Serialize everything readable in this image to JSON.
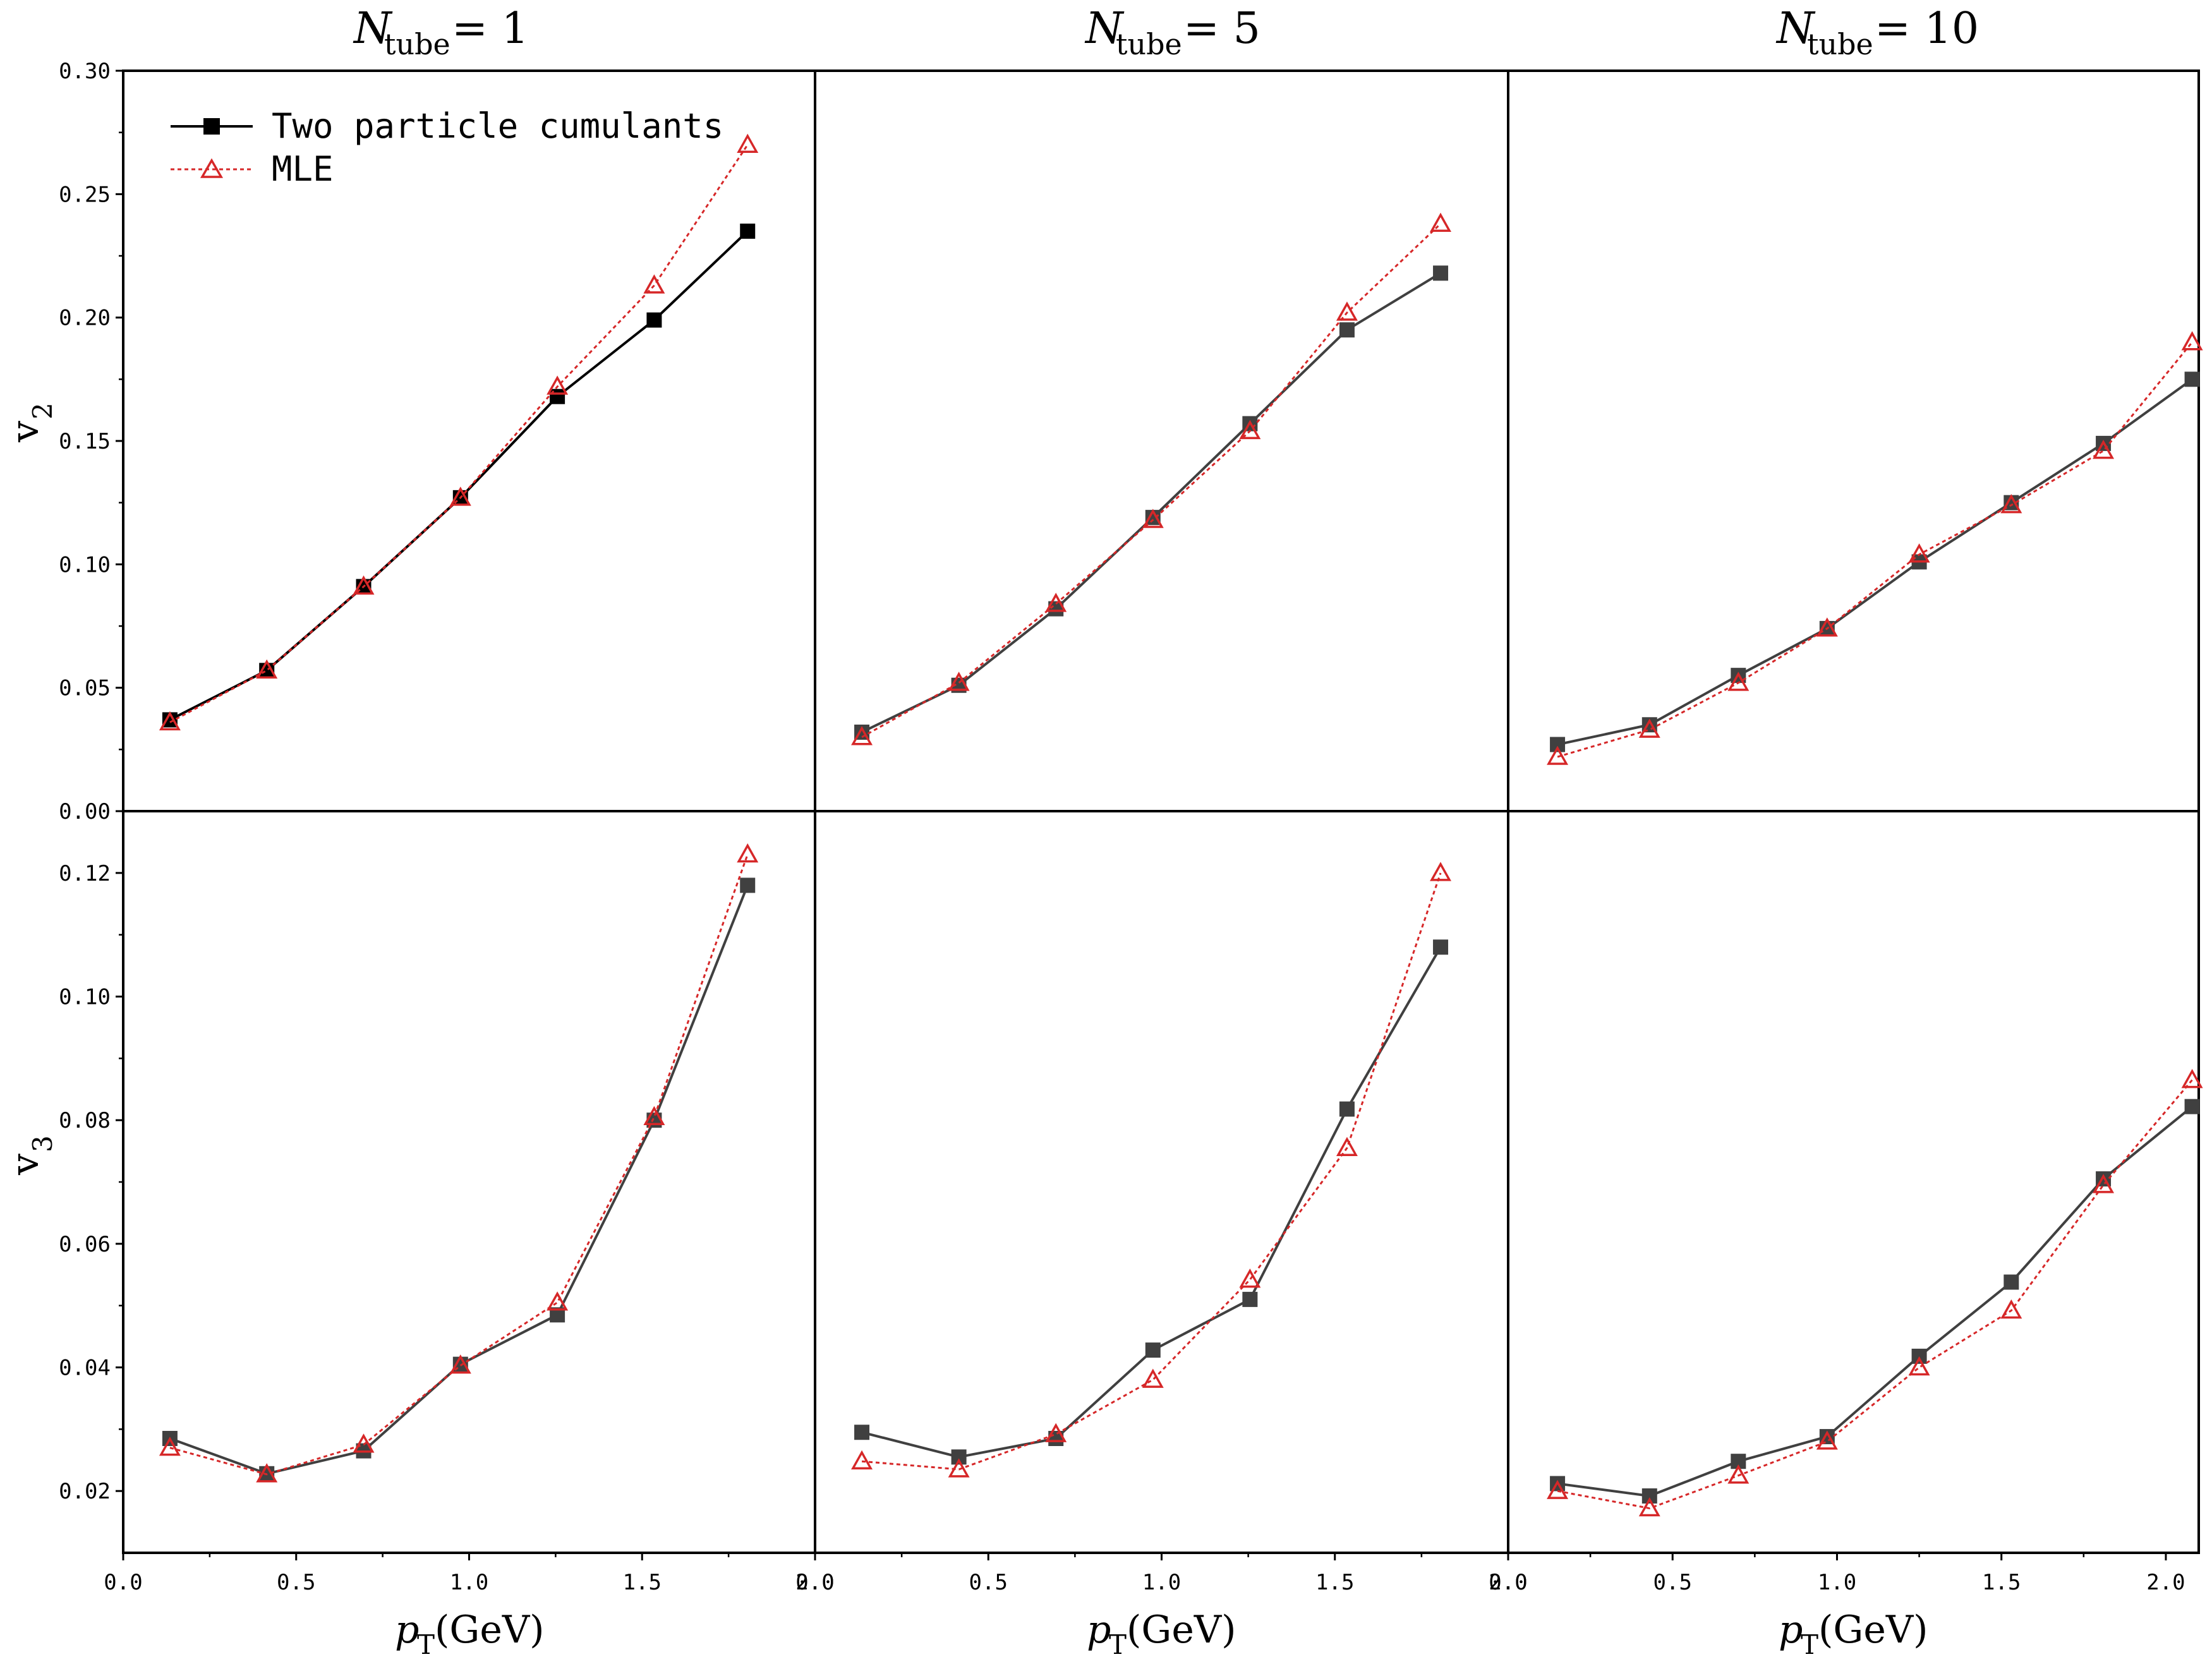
{
  "figure": {
    "x_axis_label": "p",
    "x_axis_label_sub": "T",
    "x_axis_unit": "(GeV)",
    "columns": [
      {
        "title_symbol": "N",
        "title_sub": "tube",
        "title_rest": "= 1"
      },
      {
        "title_symbol": "N",
        "title_sub": "tube",
        "title_rest": "= 5"
      },
      {
        "title_symbol": "N",
        "title_sub": "tube",
        "title_rest": "= 10"
      }
    ],
    "rows": [
      {
        "ylabel": "v",
        "ylabel_sub": "2"
      },
      {
        "ylabel": "v",
        "ylabel_sub": "3"
      }
    ],
    "legend": {
      "position": "top-left",
      "entries": [
        {
          "label": "Two particle cumulants",
          "color": "#000000",
          "marker": "square",
          "line": "solid"
        },
        {
          "label": "MLE",
          "color": "#d62728",
          "marker": "open-triangle",
          "line": "dotted"
        }
      ]
    },
    "x_tick_labels": [
      "0.0",
      "0.5",
      "1.0",
      "1.5",
      "2.0"
    ],
    "row_tick_labels": [
      [
        "0.00",
        "0.05",
        "0.10",
        "0.15",
        "0.20",
        "0.25",
        "0.30"
      ],
      [
        "0.02",
        "0.04",
        "0.06",
        "0.08",
        "0.10",
        "0.12"
      ]
    ]
  },
  "chart_data": [
    {
      "type": "line",
      "panel": "v2, Ntube = 1",
      "xlim": [
        0,
        2
      ],
      "ylim": [
        0,
        0.3
      ],
      "x": [
        0.135,
        0.415,
        0.695,
        0.975,
        1.255,
        1.535,
        1.805
      ],
      "series": [
        {
          "name": "Two particle cumulants",
          "color": "#000000",
          "values": [
            0.037,
            0.057,
            0.091,
            0.127,
            0.168,
            0.199,
            0.235
          ]
        },
        {
          "name": "MLE",
          "color": "#d62728",
          "values": [
            0.036,
            0.057,
            0.091,
            0.127,
            0.172,
            0.213,
            0.27
          ]
        }
      ]
    },
    {
      "type": "line",
      "panel": "v2, Ntube = 5",
      "xlim": [
        0,
        2
      ],
      "ylim": [
        0,
        0.3
      ],
      "x": [
        0.135,
        0.415,
        0.695,
        0.975,
        1.255,
        1.535,
        1.805
      ],
      "series": [
        {
          "name": "Two particle cumulants",
          "color": "#404040",
          "values": [
            0.032,
            0.051,
            0.082,
            0.119,
            0.157,
            0.195,
            0.218
          ]
        },
        {
          "name": "MLE",
          "color": "#d62728",
          "values": [
            0.03,
            0.052,
            0.084,
            0.118,
            0.154,
            0.202,
            0.238
          ]
        }
      ]
    },
    {
      "type": "line",
      "panel": "v2, Ntube = 10",
      "xlim": [
        0,
        2.1
      ],
      "ylim": [
        0,
        0.3
      ],
      "x": [
        0.15,
        0.43,
        0.7,
        0.97,
        1.25,
        1.53,
        1.81,
        2.08
      ],
      "series": [
        {
          "name": "Two particle cumulants",
          "color": "#404040",
          "values": [
            0.027,
            0.035,
            0.055,
            0.074,
            0.101,
            0.125,
            0.149,
            0.175
          ]
        },
        {
          "name": "MLE",
          "color": "#d62728",
          "values": [
            0.022,
            0.033,
            0.052,
            0.074,
            0.104,
            0.124,
            0.146,
            0.19
          ]
        }
      ]
    },
    {
      "type": "line",
      "panel": "v3, Ntube = 1",
      "xlim": [
        0,
        2
      ],
      "ylim": [
        0.01,
        0.13
      ],
      "x": [
        0.135,
        0.415,
        0.695,
        0.975,
        1.255,
        1.535,
        1.805
      ],
      "series": [
        {
          "name": "Two particle cumulants",
          "color": "#404040",
          "values": [
            0.0285,
            0.0228,
            0.0265,
            0.0405,
            0.0485,
            0.08,
            0.118
          ]
        },
        {
          "name": "MLE",
          "color": "#d62728",
          "values": [
            0.027,
            0.0227,
            0.0275,
            0.0403,
            0.0505,
            0.0805,
            0.123
          ]
        }
      ]
    },
    {
      "type": "line",
      "panel": "v3, Ntube = 5",
      "xlim": [
        0,
        2
      ],
      "ylim": [
        0.01,
        0.13
      ],
      "x": [
        0.135,
        0.415,
        0.695,
        0.975,
        1.255,
        1.535,
        1.805
      ],
      "series": [
        {
          "name": "Two particle cumulants",
          "color": "#404040",
          "values": [
            0.0295,
            0.0255,
            0.0285,
            0.0428,
            0.051,
            0.0818,
            0.108
          ]
        },
        {
          "name": "MLE",
          "color": "#d62728",
          "values": [
            0.0248,
            0.0235,
            0.0292,
            0.038,
            0.0542,
            0.0755,
            0.12
          ]
        }
      ]
    },
    {
      "type": "line",
      "panel": "v3, Ntube = 10",
      "xlim": [
        0,
        2.1
      ],
      "ylim": [
        0.01,
        0.13
      ],
      "x": [
        0.15,
        0.43,
        0.7,
        0.97,
        1.25,
        1.53,
        1.81,
        2.08
      ],
      "series": [
        {
          "name": "Two particle cumulants",
          "color": "#404040",
          "values": [
            0.0212,
            0.0192,
            0.0248,
            0.0288,
            0.0418,
            0.0538,
            0.0705,
            0.0822
          ]
        },
        {
          "name": "MLE",
          "color": "#d62728",
          "values": [
            0.02,
            0.0172,
            0.0225,
            0.028,
            0.04,
            0.0492,
            0.0695,
            0.0865
          ]
        }
      ]
    }
  ]
}
